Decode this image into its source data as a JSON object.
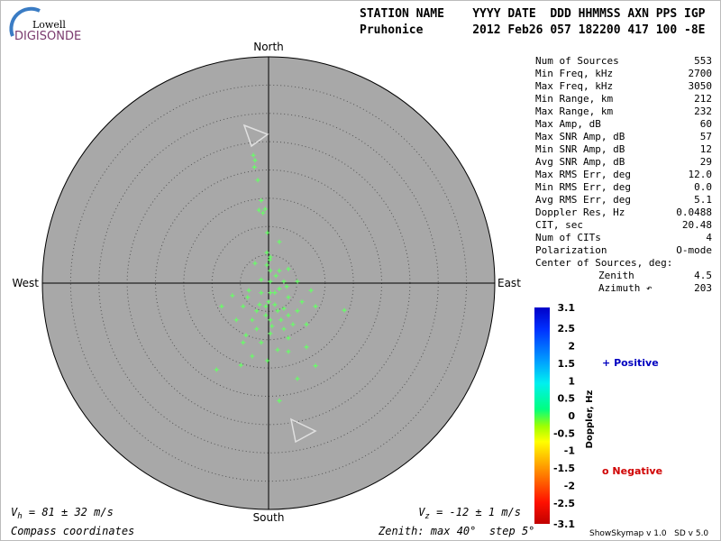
{
  "logo": {
    "top": "Lowell",
    "bottom": "DIGISONDE"
  },
  "header": {
    "labels": "STATION NAME    YYYY DATE  DDD HHMMSS AXN PPS IGP",
    "values": "Pruhonice       2012 Feb26 057 182200 417 100 -8E"
  },
  "chart_data": {
    "type": "skymap",
    "directions": {
      "north": "North",
      "south": "South",
      "east": "East",
      "west": "West"
    },
    "zenith_max": 40,
    "zenith_step": 5,
    "color": "#66ff66",
    "points": {
      "x": [
        -2.7,
        -2.5,
        -2.4,
        -1.9,
        -1.3,
        -1.7,
        -0.6,
        -1.0,
        -0.2,
        1.9,
        -0.3,
        -0.3,
        0.2,
        3.5,
        -2.4,
        0.3,
        1.9,
        1.3,
        -1.3,
        0.3,
        2.7,
        5.1,
        7.5,
        -6.4,
        -3.7,
        -1.3,
        0.3,
        1.9,
        3.5,
        -8.3,
        -4.5,
        -2.1,
        -0.5,
        1.1,
        2.7,
        5.1,
        8.3,
        -2.9,
        0.3,
        3.5,
        6.7,
        -2.1,
        0.3,
        2.7,
        -4.5,
        -1.3,
        3.5,
        6.7,
        -2.9,
        -0.2,
        3.5,
        -9.2,
        -4.9,
        8.3,
        5.1,
        1.9,
        1.1,
        0.0,
        1.6,
        -0.5,
        2.2,
        0.6,
        -1.6,
        3.2,
        4.3,
        13.4,
        1.6,
        -4.0,
        -5.7,
        5.9,
        0.3,
        -3.5
      ],
      "y": [
        22.6,
        20.5,
        21.7,
        18.2,
        14.6,
        12.9,
        13.1,
        12.4,
        8.9,
        7.3,
        5.4,
        3.2,
        4.1,
        2.5,
        3.5,
        2.2,
        2.2,
        1.3,
        0.6,
        0.3,
        0.3,
        0.3,
        -1.3,
        -2.2,
        -2.5,
        -1.7,
        -1.7,
        -1.0,
        -2.5,
        -4.1,
        -4.1,
        -4.9,
        -4.1,
        -3.8,
        -4.5,
        -4.9,
        -4.1,
        -6.5,
        -6.5,
        -5.7,
        -7.3,
        -8.1,
        -8.9,
        -8.1,
        -10.5,
        -10.5,
        -9.7,
        -11.3,
        -12.9,
        -13.7,
        -12.1,
        -15.3,
        -14.5,
        -14.6,
        -16.9,
        -20.8,
        -1.7,
        -3.3,
        -4.9,
        -5.7,
        -6.5,
        -7.6,
        -3.8,
        -0.6,
        -7.3,
        -4.8,
        -11.8,
        -9.2,
        -6.5,
        -3.3,
        4.6,
        -1.3
      ]
    }
  },
  "stats": [
    {
      "label": "Num of Sources",
      "value": "553"
    },
    {
      "label": "Min Freq, kHz",
      "value": "2700"
    },
    {
      "label": "Max Freq, kHz",
      "value": "3050"
    },
    {
      "label": "Min Range, km",
      "value": "212"
    },
    {
      "label": "Max Range, km",
      "value": "232"
    },
    {
      "label": "Max Amp, dB",
      "value": "60"
    },
    {
      "label": "Max SNR Amp, dB",
      "value": "57"
    },
    {
      "label": "Min SNR Amp, dB",
      "value": "12"
    },
    {
      "label": "Avg SNR Amp, dB",
      "value": "29"
    },
    {
      "label": "Max RMS Err, deg",
      "value": "12.0"
    },
    {
      "label": "Min RMS Err, deg",
      "value": "0.0"
    },
    {
      "label": "Avg RMS Err, deg",
      "value": "5.1"
    },
    {
      "label": "Doppler Res, Hz",
      "value": "0.0488"
    },
    {
      "label": "CIT, sec",
      "value": "20.48"
    },
    {
      "label": "Num of CITs",
      "value": "4"
    },
    {
      "label": "Polarization",
      "value": "O-mode"
    }
  ],
  "center": {
    "label": "Center of Sources, deg:",
    "zenith": {
      "label": "Zenith",
      "value": "4.5"
    },
    "azimuth": {
      "label": "Azimuth ↶",
      "value": "203"
    }
  },
  "colorbar": {
    "label": "Doppler, Hz",
    "lim": [
      -3.1,
      3.1
    ],
    "ticks": [
      3.1,
      2.5,
      2,
      1.5,
      1,
      0.5,
      0,
      -0.5,
      -1.0,
      -1.5,
      -2.0,
      -2.5,
      -3.1
    ]
  },
  "legend": {
    "positive": {
      "symbol": "+",
      "label": "Positive"
    },
    "negative": {
      "symbol": "o",
      "label": "Negative"
    }
  },
  "footer": {
    "vh": {
      "symbol": "V",
      "sub": "h",
      "text": " = 81 ± 32 m/s"
    },
    "vz": {
      "symbol": "V",
      "sub": "z",
      "text": " = -12 ± 1 m/s"
    },
    "coords": "Compass coordinates",
    "zenith": "Zenith: max 40°  step 5°",
    "version": "ShowSkymap v 1.0   SD v 5.0"
  }
}
